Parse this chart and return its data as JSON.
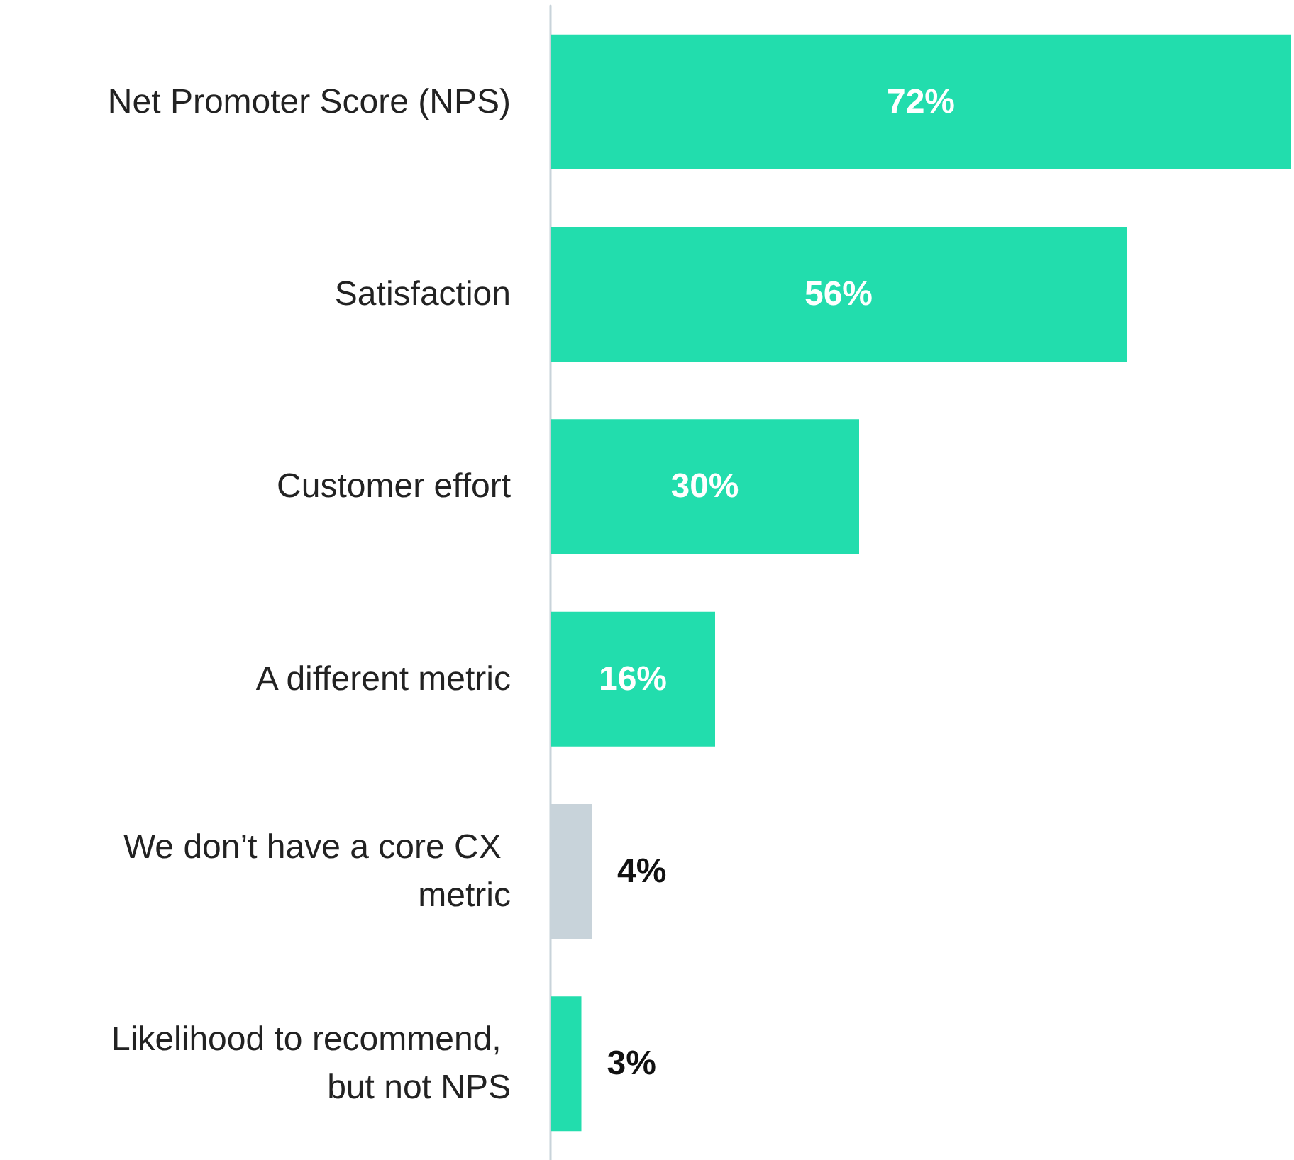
{
  "chart_data": {
    "type": "bar",
    "orientation": "horizontal",
    "categories": [
      "Net Promoter Score (NPS)",
      "Satisfaction",
      "Customer effort",
      "A different metric",
      "We don’t have a core CX metric",
      "Likelihood to recommend, but not NPS"
    ],
    "values": [
      72,
      56,
      30,
      16,
      4,
      3
    ],
    "value_labels": [
      "72%",
      "56%",
      "30%",
      "16%",
      "4%",
      "3%"
    ],
    "colors": [
      "#22ddad",
      "#22ddad",
      "#22ddad",
      "#22ddad",
      "#c8d3da",
      "#22ddad"
    ]
  }
}
